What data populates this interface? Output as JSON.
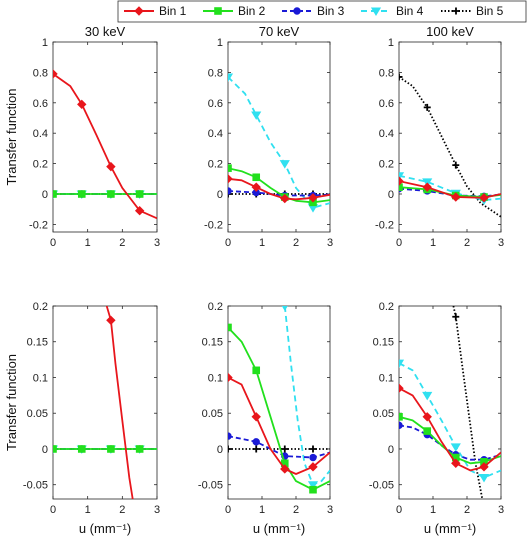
{
  "legend": [
    {
      "name": "Bin 1",
      "color": "#e8161c",
      "dash": "",
      "marker": "diamond"
    },
    {
      "name": "Bin 2",
      "color": "#22e01d",
      "dash": "",
      "marker": "square"
    },
    {
      "name": "Bin 3",
      "color": "#1a1ad6",
      "dash": "5,3",
      "marker": "circle"
    },
    {
      "name": "Bin 4",
      "color": "#30e0f0",
      "dash": "6,4",
      "marker": "triangle-down"
    },
    {
      "name": "Bin 5",
      "color": "#000000",
      "dash": "1.5,2",
      "marker": "plus"
    }
  ],
  "chart_data": [
    {
      "type": "line",
      "title": "30 keV",
      "xlabel": "",
      "ylabel": "Transfer function",
      "xlim": [
        0,
        3
      ],
      "ylim": [
        -0.25,
        1
      ],
      "xticks": [
        0,
        1,
        2,
        3
      ],
      "yticks": [
        1,
        0.8,
        0.6,
        0.4,
        0.2,
        0,
        -0.2
      ],
      "ytick_labels": [
        "1",
        "0.8",
        "0.6",
        "0.4",
        "0.2",
        "0",
        "-0.2"
      ],
      "series": [
        {
          "name": "Bin 1",
          "x": [
            0,
            0.5,
            0.83,
            1.25,
            1.67,
            2.0,
            2.5,
            3.0
          ],
          "y": [
            0.79,
            0.71,
            0.59,
            0.39,
            0.18,
            0.04,
            -0.11,
            -0.16
          ]
        },
        {
          "name": "Bin 2",
          "x": [
            0,
            0.83,
            1.67,
            2.5,
            3.0
          ],
          "y": [
            0,
            0,
            0,
            0,
            0
          ]
        },
        {
          "name": "Bin 3",
          "x": [
            0,
            0.83,
            1.67,
            2.5,
            3.0
          ],
          "y": [
            0,
            0,
            0,
            0,
            0
          ]
        },
        {
          "name": "Bin 4",
          "x": [
            0,
            0.83,
            1.67,
            2.5,
            3.0
          ],
          "y": [
            0,
            0,
            0,
            0,
            0
          ]
        },
        {
          "name": "Bin 5",
          "x": [
            0,
            0.83,
            1.67,
            2.5,
            3.0
          ],
          "y": [
            0,
            0,
            0,
            0,
            0
          ]
        }
      ]
    },
    {
      "type": "line",
      "title": "70 keV",
      "xlabel": "",
      "ylabel": "",
      "xlim": [
        0,
        3
      ],
      "ylim": [
        -0.25,
        1
      ],
      "xticks": [
        0,
        1,
        2,
        3
      ],
      "yticks": [
        1,
        0.8,
        0.6,
        0.4,
        0.2,
        0,
        -0.2
      ],
      "ytick_labels": [
        "1",
        "0.8",
        "0.6",
        "0.4",
        "0.2",
        "0",
        "-0.2"
      ],
      "series": [
        {
          "name": "Bin 1",
          "x": [
            0,
            0.4,
            0.83,
            1.25,
            1.67,
            2.0,
            2.5,
            3.0
          ],
          "y": [
            0.1,
            0.09,
            0.045,
            0.0,
            -0.03,
            -0.035,
            -0.025,
            -0.005
          ]
        },
        {
          "name": "Bin 2",
          "x": [
            0,
            0.4,
            0.83,
            1.25,
            1.67,
            2.0,
            2.5,
            3.0
          ],
          "y": [
            0.17,
            0.15,
            0.11,
            0.04,
            -0.02,
            -0.045,
            -0.055,
            -0.04
          ]
        },
        {
          "name": "Bin 3",
          "x": [
            0,
            0.83,
            1.67,
            2.5,
            3.0
          ],
          "y": [
            0.02,
            0.01,
            -0.01,
            -0.01,
            -0.003
          ]
        },
        {
          "name": "Bin 4",
          "x": [
            0,
            0.5,
            0.83,
            1.25,
            1.67,
            2.0,
            2.5,
            3.0
          ],
          "y": [
            0.77,
            0.66,
            0.52,
            0.34,
            0.2,
            0.04,
            -0.09,
            -0.06
          ]
        },
        {
          "name": "Bin 5",
          "x": [
            0,
            0.83,
            1.67,
            2.5,
            3.0
          ],
          "y": [
            0,
            0,
            0,
            0,
            0
          ]
        }
      ]
    },
    {
      "type": "line",
      "title": "100 keV",
      "xlabel": "",
      "ylabel": "",
      "xlim": [
        0,
        3
      ],
      "ylim": [
        -0.25,
        1
      ],
      "xticks": [
        0,
        1,
        2,
        3
      ],
      "yticks": [
        1,
        0.8,
        0.6,
        0.4,
        0.2,
        0,
        -0.2
      ],
      "ytick_labels": [
        "1",
        "0.8",
        "0.6",
        "0.4",
        "0.2",
        "0",
        "-0.2"
      ],
      "series": [
        {
          "name": "Bin 1",
          "x": [
            0,
            0.83,
            1.67,
            2.5,
            3.0
          ],
          "y": [
            0.085,
            0.045,
            -0.02,
            -0.025,
            0
          ]
        },
        {
          "name": "Bin 2",
          "x": [
            0,
            0.83,
            1.67,
            2.5,
            3.0
          ],
          "y": [
            0.045,
            0.03,
            -0.01,
            -0.02,
            -0.005
          ]
        },
        {
          "name": "Bin 3",
          "x": [
            0,
            0.83,
            1.67,
            2.5,
            3.0
          ],
          "y": [
            0.035,
            0.02,
            -0.01,
            -0.015,
            -0.003
          ]
        },
        {
          "name": "Bin 4",
          "x": [
            0,
            0.83,
            1.67,
            2.5,
            3.0
          ],
          "y": [
            0.12,
            0.08,
            0.005,
            -0.04,
            -0.03
          ]
        },
        {
          "name": "Bin 5",
          "x": [
            0,
            0.4,
            0.83,
            1.25,
            1.67,
            2.0,
            2.4,
            3.0
          ],
          "y": [
            0.77,
            0.71,
            0.57,
            0.38,
            0.19,
            0.05,
            -0.06,
            -0.15
          ]
        }
      ]
    },
    {
      "type": "line",
      "title": "",
      "xlabel": "u (mm⁻¹)",
      "ylabel": "Transfer function",
      "xlim": [
        0,
        3
      ],
      "ylim": [
        -0.07,
        0.2
      ],
      "xticks": [
        0,
        1,
        2,
        3
      ],
      "yticks": [
        0.2,
        0.15,
        0.1,
        0.05,
        0,
        -0.05
      ],
      "ytick_labels": [
        "0.2",
        "0.15",
        "0.1",
        "0.05",
        "0",
        "-0.05"
      ],
      "series": [
        {
          "name": "Bin 1",
          "x": [
            1.55,
            1.67,
            1.8,
            2.0,
            2.2,
            2.3
          ],
          "y": [
            0.2,
            0.18,
            0.12,
            0.04,
            -0.04,
            -0.07
          ]
        },
        {
          "name": "Bin 2",
          "x": [
            0,
            0.83,
            1.67,
            2.5,
            3.0
          ],
          "y": [
            0,
            0,
            0,
            0,
            0
          ]
        },
        {
          "name": "Bin 3",
          "x": [
            0,
            0.83,
            1.67,
            2.5,
            3.0
          ],
          "y": [
            0,
            0,
            0,
            0,
            0
          ]
        },
        {
          "name": "Bin 4",
          "x": [
            0,
            0.83,
            1.67,
            2.5,
            3.0
          ],
          "y": [
            0,
            0,
            0,
            0,
            0
          ]
        },
        {
          "name": "Bin 5",
          "x": [
            0,
            0.83,
            1.67,
            2.5,
            3.0
          ],
          "y": [
            0,
            0,
            0,
            0,
            0
          ]
        }
      ]
    },
    {
      "type": "line",
      "title": "",
      "xlabel": "u (mm⁻¹)",
      "ylabel": "",
      "xlim": [
        0,
        3
      ],
      "ylim": [
        -0.07,
        0.2
      ],
      "xticks": [
        0,
        1,
        2,
        3
      ],
      "yticks": [
        0.2,
        0.15,
        0.1,
        0.05,
        0,
        -0.05
      ],
      "ytick_labels": [
        "0.2",
        "0.15",
        "0.1",
        "0.05",
        "0",
        "-0.05"
      ],
      "series": [
        {
          "name": "Bin 1",
          "x": [
            0,
            0.4,
            0.83,
            1.25,
            1.67,
            2.0,
            2.5,
            3.0
          ],
          "y": [
            0.1,
            0.09,
            0.045,
            0.0,
            -0.028,
            -0.035,
            -0.025,
            -0.005
          ]
        },
        {
          "name": "Bin 2",
          "x": [
            0,
            0.4,
            0.83,
            1.25,
            1.67,
            2.0,
            2.5,
            3.0
          ],
          "y": [
            0.17,
            0.15,
            0.11,
            0.045,
            -0.02,
            -0.045,
            -0.057,
            -0.045
          ]
        },
        {
          "name": "Bin 3",
          "x": [
            0,
            0.83,
            1.67,
            2.5,
            3.0
          ],
          "y": [
            0.018,
            0.01,
            -0.01,
            -0.012,
            -0.005
          ]
        },
        {
          "name": "Bin 4",
          "x": [
            1.67,
            1.85,
            2.05,
            2.25,
            2.5,
            2.75,
            3.0
          ],
          "y": [
            0.2,
            0.12,
            0.04,
            -0.02,
            -0.05,
            -0.045,
            -0.03
          ]
        },
        {
          "name": "Bin 5",
          "x": [
            0,
            0.83,
            1.67,
            2.5,
            3.0
          ],
          "y": [
            0,
            0,
            0,
            0,
            0
          ]
        }
      ]
    },
    {
      "type": "line",
      "title": "",
      "xlabel": "u (mm⁻¹)",
      "ylabel": "",
      "xlim": [
        0,
        3
      ],
      "ylim": [
        -0.07,
        0.2
      ],
      "xticks": [
        0,
        1,
        2,
        3
      ],
      "yticks": [
        0.2,
        0.15,
        0.1,
        0.05,
        0,
        -0.05
      ],
      "ytick_labels": [
        "0.2",
        "0.15",
        "0.1",
        "0.05",
        "0",
        "-0.05"
      ],
      "series": [
        {
          "name": "Bin 1",
          "x": [
            0,
            0.4,
            0.83,
            1.25,
            1.67,
            2.1,
            2.5,
            3.0
          ],
          "y": [
            0.085,
            0.075,
            0.045,
            0.01,
            -0.02,
            -0.03,
            -0.025,
            -0.005
          ]
        },
        {
          "name": "Bin 2",
          "x": [
            0,
            0.4,
            0.83,
            1.25,
            1.67,
            2.1,
            2.5,
            3.0
          ],
          "y": [
            0.045,
            0.04,
            0.025,
            0.005,
            -0.012,
            -0.02,
            -0.018,
            -0.01
          ]
        },
        {
          "name": "Bin 3",
          "x": [
            0,
            0.4,
            0.83,
            1.25,
            1.67,
            2.1,
            2.5,
            3.0
          ],
          "y": [
            0.033,
            0.03,
            0.02,
            0.005,
            -0.008,
            -0.015,
            -0.015,
            -0.008
          ]
        },
        {
          "name": "Bin 4",
          "x": [
            0,
            0.4,
            0.83,
            1.25,
            1.67,
            2.1,
            2.5,
            3.0
          ],
          "y": [
            0.12,
            0.11,
            0.075,
            0.04,
            0.003,
            -0.03,
            -0.04,
            -0.03
          ]
        },
        {
          "name": "Bin 5",
          "x": [
            1.6,
            1.67,
            1.85,
            2.05,
            2.25,
            2.45
          ],
          "y": [
            0.2,
            0.185,
            0.12,
            0.05,
            -0.02,
            -0.07
          ]
        }
      ]
    }
  ]
}
